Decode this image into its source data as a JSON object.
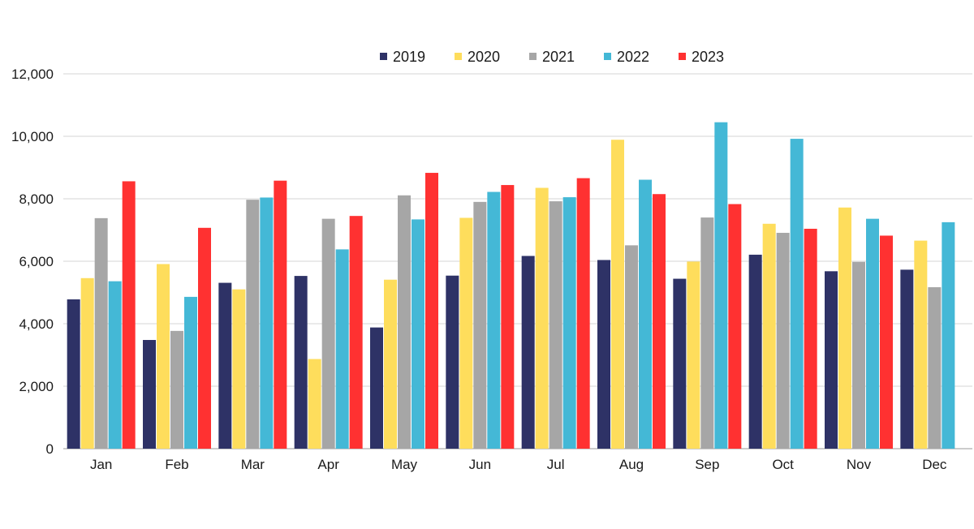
{
  "chart_data": {
    "type": "bar",
    "title": "",
    "xlabel": "",
    "ylabel": "",
    "categories": [
      "Jan",
      "Feb",
      "Mar",
      "Apr",
      "May",
      "Jun",
      "Jul",
      "Aug",
      "Sep",
      "Oct",
      "Nov",
      "Dec"
    ],
    "ylim": [
      0,
      12000
    ],
    "yticks": [
      0,
      2000,
      4000,
      6000,
      8000,
      10000,
      12000
    ],
    "ytick_labels": [
      "0",
      "2,000",
      "4,000",
      "6,000",
      "8,000",
      "10,000",
      "12,000"
    ],
    "grid": true,
    "legend_position": "top-center",
    "series": [
      {
        "name": "2019",
        "color": "#2e3266",
        "values": [
          4780,
          3480,
          5310,
          5530,
          3880,
          5540,
          6170,
          6040,
          5440,
          6210,
          5680,
          5730
        ]
      },
      {
        "name": "2020",
        "color": "#fedd5c",
        "values": [
          5460,
          5910,
          5100,
          2870,
          5410,
          7390,
          8350,
          9890,
          5990,
          7200,
          7720,
          6660
        ]
      },
      {
        "name": "2021",
        "color": "#a6a6a6",
        "values": [
          7380,
          3770,
          7970,
          7360,
          8110,
          7900,
          7920,
          6510,
          7400,
          6910,
          5980,
          5170
        ]
      },
      {
        "name": "2022",
        "color": "#44b8d6",
        "values": [
          5360,
          4860,
          8040,
          6380,
          7340,
          8220,
          8050,
          8610,
          10450,
          9920,
          7360,
          7250
        ]
      },
      {
        "name": "2023",
        "color": "#ff3131",
        "values": [
          8560,
          7070,
          8580,
          7450,
          8830,
          8440,
          8660,
          8150,
          7830,
          7040,
          6820,
          null
        ]
      }
    ]
  }
}
